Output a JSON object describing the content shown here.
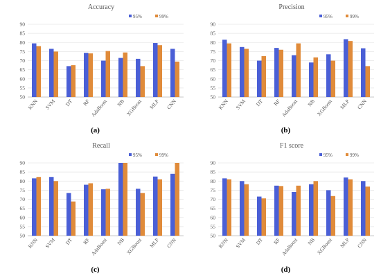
{
  "colors": {
    "s95": "#4a5fd6",
    "s99": "#e08b3a",
    "axis": "#bbbbbb",
    "grid": "#e6e6e6",
    "text": "#555555"
  },
  "chart_data": [
    {
      "type": "bar",
      "panel_label": "(a)",
      "title": "Accuracy",
      "categories": [
        "KNN",
        "SVM",
        "DT",
        "RF",
        "AdaBoost",
        "NB",
        "XGBoost",
        "MLP",
        "CNN"
      ],
      "series": [
        {
          "name": "95%",
          "values": [
            79.5,
            76.5,
            67,
            74.3,
            70,
            71.5,
            71,
            79.7,
            76.5
          ]
        },
        {
          "name": "99%",
          "values": [
            78,
            75,
            67.5,
            74,
            75.3,
            74.5,
            67,
            78.5,
            69.5
          ]
        }
      ],
      "ylim": [
        50,
        90
      ],
      "yticks": [
        50,
        55,
        60,
        65,
        70,
        75,
        80,
        85,
        90
      ],
      "legend": "top-right",
      "grid": true
    },
    {
      "type": "bar",
      "panel_label": "(b)",
      "title": "Precision",
      "categories": [
        "KNN",
        "SVM",
        "DT",
        "RF",
        "AdaBoost",
        "NB",
        "XGBoost",
        "MLP",
        "CNN"
      ],
      "series": [
        {
          "name": "95%",
          "values": [
            81.5,
            77.5,
            70,
            77,
            73,
            69,
            73.5,
            81.8,
            76.8
          ]
        },
        {
          "name": "99%",
          "values": [
            79.5,
            76.5,
            72.5,
            76,
            79.5,
            71.8,
            70,
            80.8,
            67
          ]
        }
      ],
      "ylim": [
        50,
        90
      ],
      "yticks": [
        50,
        55,
        60,
        65,
        70,
        75,
        80,
        85,
        90
      ],
      "legend": "top-right",
      "grid": true
    },
    {
      "type": "bar",
      "panel_label": "(c)",
      "title": "Recall",
      "categories": [
        "KNN",
        "SVM",
        "DT",
        "RF",
        "AdaBoost",
        "NB",
        "XGBoost",
        "MLP",
        "CNN"
      ],
      "series": [
        {
          "name": "95%",
          "values": [
            81.5,
            82.3,
            73.5,
            78,
            75.5,
            90,
            75.8,
            82.5,
            84
          ]
        },
        {
          "name": "99%",
          "values": [
            82.3,
            80,
            68.8,
            78.8,
            75.8,
            90,
            73.5,
            81,
            90
          ]
        }
      ],
      "ylim": [
        50,
        90
      ],
      "yticks": [
        50,
        55,
        60,
        65,
        70,
        75,
        80,
        85,
        90
      ],
      "legend": "top-right",
      "grid": true
    },
    {
      "type": "bar",
      "panel_label": "(d)",
      "title": "F1 score",
      "categories": [
        "KNN",
        "SVM",
        "DT",
        "RF",
        "AdaBoost",
        "NB",
        "XGBoost",
        "MLP",
        "CNN"
      ],
      "series": [
        {
          "name": "95%",
          "values": [
            81.5,
            80,
            71.5,
            77.5,
            74,
            78.3,
            75,
            82,
            80
          ]
        },
        {
          "name": "99%",
          "values": [
            81,
            78.3,
            70.5,
            77.3,
            77.5,
            80,
            71.8,
            81,
            77
          ]
        }
      ],
      "ylim": [
        50,
        90
      ],
      "yticks": [
        50,
        55,
        60,
        65,
        70,
        75,
        80,
        85,
        90
      ],
      "legend": "top-right",
      "grid": true
    }
  ]
}
